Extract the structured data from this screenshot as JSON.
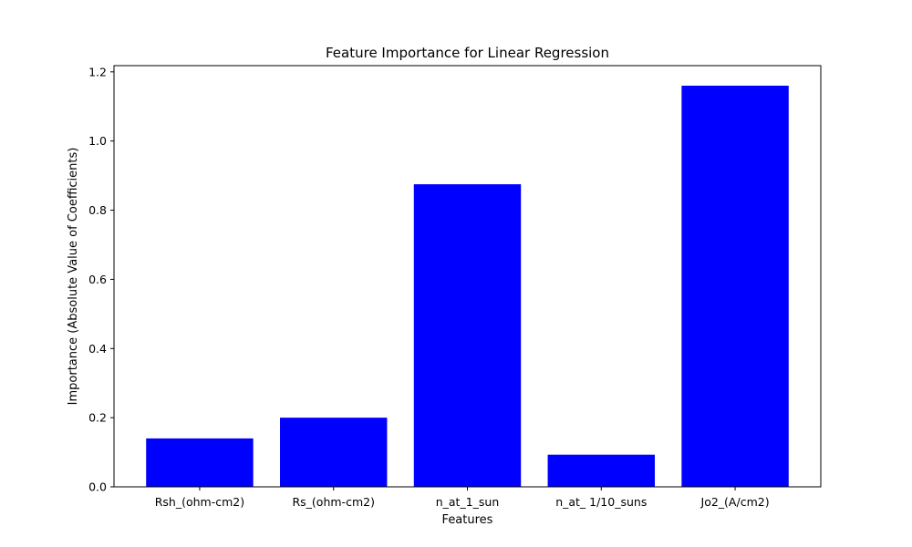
{
  "chart_data": {
    "type": "bar",
    "title": "Feature Importance for Linear Regression",
    "xlabel": "Features",
    "ylabel": "Importance (Absolute Value of Coefficients)",
    "categories": [
      "Rsh_(ohm-cm2)",
      "Rs_(ohm-cm2)",
      "n_at_1_sun",
      "n_at_ 1/10_suns",
      "Jo2_(A/cm2)"
    ],
    "values": [
      0.14,
      0.2,
      0.875,
      0.093,
      1.16
    ],
    "ylim": [
      0,
      1.218
    ],
    "yticks": [
      0.0,
      0.2,
      0.4,
      0.6,
      0.8,
      1.0,
      1.2
    ],
    "ytick_labels": [
      "0.0",
      "0.2",
      "0.4",
      "0.6",
      "0.8",
      "1.0",
      "1.2"
    ],
    "bar_color": "#0000ff",
    "grid": false,
    "legend": "none"
  }
}
